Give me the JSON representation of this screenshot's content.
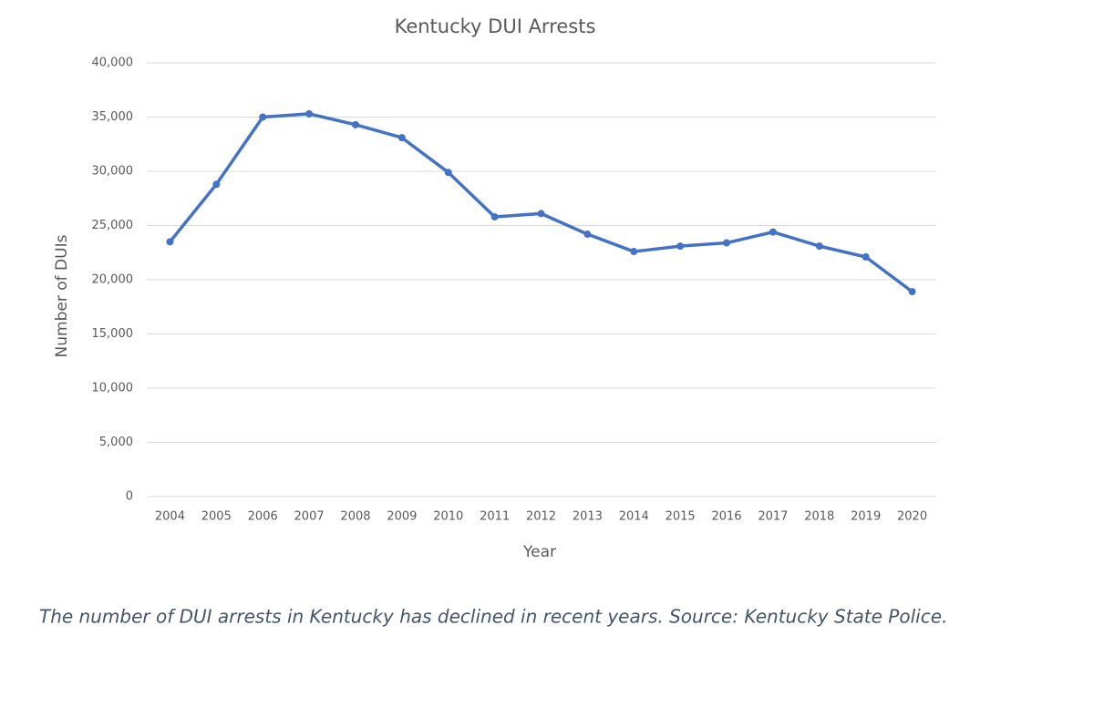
{
  "chart_data": {
    "type": "line",
    "title": "Kentucky DUI Arrests",
    "x_label": "Year",
    "y_label": "Number of DUIs",
    "categories": [
      "2004",
      "2005",
      "2006",
      "2007",
      "2008",
      "2009",
      "2010",
      "2011",
      "2012",
      "2013",
      "2014",
      "2015",
      "2016",
      "2017",
      "2018",
      "2019",
      "2020"
    ],
    "series": [
      {
        "name": "DUI Arrests",
        "color": "#4472c4",
        "values": [
          23500,
          28800,
          35000,
          35300,
          34300,
          33100,
          29900,
          25800,
          26100,
          24200,
          22600,
          23100,
          23400,
          24400,
          23100,
          22100,
          18900
        ]
      }
    ],
    "ylim": [
      0,
      40000
    ],
    "yticks": [
      0,
      {
        "value": 5000,
        "label": "5,000"
      },
      {
        "value": 10000,
        "label": "10,000"
      },
      {
        "value": 15000,
        "label": "15,000"
      },
      {
        "value": 20000,
        "label": "20,000"
      },
      {
        "value": 25000,
        "label": "25,000"
      },
      {
        "value": 30000,
        "label": "30,000"
      },
      {
        "value": 35000,
        "label": "35,000"
      },
      {
        "value": 40000,
        "label": "40,000"
      }
    ],
    "grid": true,
    "caption": "The number of DUI arrests in Kentucky has declined in recent years. Source: Kentucky State Police."
  }
}
